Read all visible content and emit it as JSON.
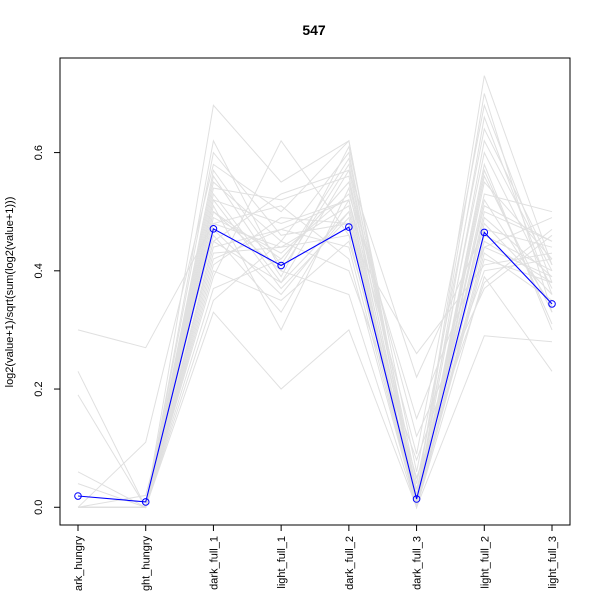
{
  "chart_data": {
    "type": "line",
    "title": "547",
    "xlabel": "",
    "ylabel": "log2(value+1)/sqrt(sum(log2(value+1)))",
    "categories": [
      "dark_hungry",
      "light_hungry",
      "dark_full_1",
      "light_full_1",
      "dark_full_2",
      "dark_full_3",
      "light_full_2",
      "light_full_3"
    ],
    "tick_labels": [
      "ark_hungry",
      "ght_hungry",
      "dark_full_1",
      "light_full_1",
      "dark_full_2",
      "dark_full_3",
      "light_full_2",
      "light_full_3"
    ],
    "ylim": [
      -0.03,
      0.76
    ],
    "yticks": [
      0.0,
      0.2,
      0.4,
      0.6
    ],
    "ytick_labels": [
      "0.0",
      "0.2",
      "0.4",
      "0.6"
    ],
    "grid": false,
    "highlight_color": "#0000ff",
    "background_color": "#e0e0e0",
    "series": [
      {
        "values": [
          0.019,
          0.009,
          0.471,
          0.409,
          0.474,
          0.014,
          0.465,
          0.344
        ]
      }
    ],
    "background_series": [
      [
        0.0,
        0.0,
        0.5,
        0.42,
        0.55,
        0.02,
        0.48,
        0.36
      ],
      [
        0.0,
        0.0,
        0.55,
        0.45,
        0.6,
        0.01,
        0.62,
        0.4
      ],
      [
        0.0,
        0.0,
        0.45,
        0.38,
        0.5,
        0.0,
        0.55,
        0.42
      ],
      [
        0.23,
        0.0,
        0.52,
        0.48,
        0.52,
        0.03,
        0.45,
        0.38
      ],
      [
        0.0,
        0.0,
        0.62,
        0.4,
        0.58,
        0.02,
        0.7,
        0.33
      ],
      [
        0.3,
        0.27,
        0.48,
        0.44,
        0.46,
        0.0,
        0.5,
        0.45
      ],
      [
        0.0,
        0.0,
        0.4,
        0.35,
        0.45,
        0.05,
        0.38,
        0.47
      ],
      [
        0.0,
        0.11,
        0.58,
        0.5,
        0.62,
        0.0,
        0.58,
        0.3
      ],
      [
        0.0,
        0.0,
        0.35,
        0.45,
        0.4,
        0.08,
        0.4,
        0.42
      ],
      [
        0.06,
        0.0,
        0.54,
        0.52,
        0.56,
        0.01,
        0.66,
        0.36
      ],
      [
        0.0,
        0.0,
        0.49,
        0.43,
        0.53,
        0.15,
        0.44,
        0.49
      ],
      [
        0.0,
        0.0,
        0.47,
        0.36,
        0.5,
        0.0,
        0.52,
        0.34
      ],
      [
        0.0,
        0.0,
        0.68,
        0.55,
        0.62,
        0.02,
        0.73,
        0.41
      ],
      [
        0.19,
        0.0,
        0.44,
        0.47,
        0.44,
        0.0,
        0.42,
        0.38
      ],
      [
        0.0,
        0.0,
        0.53,
        0.38,
        0.57,
        0.22,
        0.47,
        0.44
      ],
      [
        0.0,
        0.0,
        0.41,
        0.49,
        0.48,
        0.0,
        0.39,
        0.23
      ],
      [
        0.0,
        0.0,
        0.57,
        0.41,
        0.59,
        0.04,
        0.6,
        0.37
      ],
      [
        0.0,
        0.02,
        0.46,
        0.33,
        0.52,
        0.0,
        0.46,
        0.4
      ],
      [
        0.0,
        0.0,
        0.39,
        0.62,
        0.46,
        0.26,
        0.41,
        0.43
      ],
      [
        0.04,
        0.0,
        0.51,
        0.3,
        0.54,
        0.0,
        0.56,
        0.33
      ],
      [
        0.0,
        0.0,
        0.33,
        0.2,
        0.3,
        0.0,
        0.29,
        0.28
      ],
      [
        0.0,
        0.0,
        0.6,
        0.46,
        0.48,
        0.02,
        0.49,
        0.39
      ],
      [
        0.0,
        0.0,
        0.43,
        0.44,
        0.51,
        0.0,
        0.53,
        0.5
      ],
      [
        0.0,
        0.0,
        0.56,
        0.39,
        0.61,
        0.06,
        0.64,
        0.41
      ],
      [
        0.0,
        0.0,
        0.48,
        0.51,
        0.42,
        0.0,
        0.43,
        0.35
      ],
      [
        0.0,
        0.0,
        0.37,
        0.42,
        0.55,
        0.12,
        0.37,
        0.46
      ],
      [
        0.0,
        0.0,
        0.52,
        0.37,
        0.49,
        0.0,
        0.57,
        0.31
      ],
      [
        0.0,
        0.0,
        0.45,
        0.53,
        0.57,
        0.03,
        0.51,
        0.45
      ],
      [
        0.0,
        0.0,
        0.5,
        0.4,
        0.36,
        0.0,
        0.44,
        0.39
      ],
      [
        0.0,
        0.0,
        0.42,
        0.47,
        0.52,
        0.09,
        0.68,
        0.38
      ]
    ]
  }
}
